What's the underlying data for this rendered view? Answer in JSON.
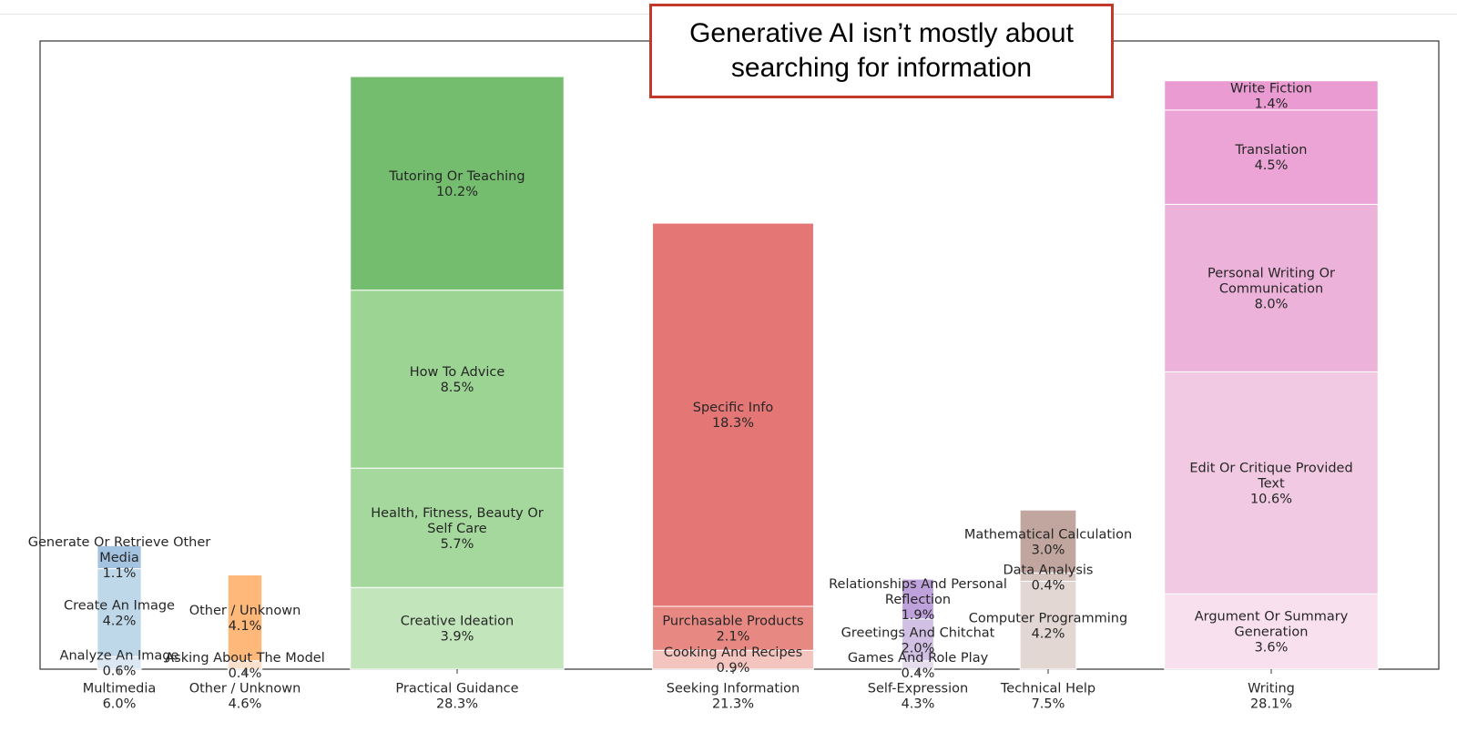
{
  "callout": {
    "text": "Generative AI isn’t mostly about searching for information"
  },
  "chart_data": {
    "type": "stacked_bar",
    "ylim": [
      0,
      30
    ],
    "grid": false,
    "legend": "none",
    "groups": [
      {
        "name": "Multimedia",
        "total_label": "6.0%",
        "total": 6.0,
        "width": 0.36,
        "segments": [
          {
            "label": "Analyze An Image",
            "pct_label": "0.6%",
            "value": 0.6,
            "color": "#dbe7f3"
          },
          {
            "label": "Create An Image",
            "pct_label": "4.2%",
            "value": 4.2,
            "color": "#bed8ea"
          },
          {
            "label": "Generate Or Retrieve Other Media",
            "pct_label": "1.1%",
            "value": 1.1,
            "color": "#a3c3e0"
          }
        ]
      },
      {
        "name": "Other / Unknown",
        "total_label": "4.6%",
        "total": 4.6,
        "width": 0.28,
        "segments": [
          {
            "label": "Asking About The Model",
            "pct_label": "0.4%",
            "value": 0.4,
            "color": "#fce0cc"
          },
          {
            "label": "Other / Unknown",
            "pct_label": "4.1%",
            "value": 4.1,
            "color": "#fdb87a"
          }
        ]
      },
      {
        "name": "Practical Guidance",
        "total_label": "28.3%",
        "total": 28.3,
        "width": 1.75,
        "segments": [
          {
            "label": "Creative Ideation",
            "pct_label": "3.9%",
            "value": 3.9,
            "color": "#c3e5bc"
          },
          {
            "label": "Health, Fitness, Beauty Or Self Care",
            "pct_label": "5.7%",
            "value": 5.7,
            "color": "#a4d89c"
          },
          {
            "label": "How To Advice",
            "pct_label": "8.5%",
            "value": 8.5,
            "color": "#9bd493"
          },
          {
            "label": "Tutoring Or Teaching",
            "pct_label": "10.2%",
            "value": 10.2,
            "color": "#74bd6f"
          }
        ]
      },
      {
        "name": "Seeking Information",
        "total_label": "21.3%",
        "total": 21.3,
        "width": 1.32,
        "segments": [
          {
            "label": "Cooking And Recipes",
            "pct_label": "0.9%",
            "value": 0.9,
            "color": "#f4c4bf"
          },
          {
            "label": "Purchasable Products",
            "pct_label": "2.1%",
            "value": 2.1,
            "color": "#e78882"
          },
          {
            "label": "Specific Info",
            "pct_label": "18.3%",
            "value": 18.3,
            "color": "#e47675"
          }
        ]
      },
      {
        "name": "Self-Expression",
        "total_label": "4.3%",
        "total": 4.3,
        "width": 0.26,
        "segments": [
          {
            "label": "Games And Role Play",
            "pct_label": "0.4%",
            "value": 0.4,
            "color": "#e5dcee"
          },
          {
            "label": "Greetings And Chitchat",
            "pct_label": "2.0%",
            "value": 2.0,
            "color": "#d1c0e3"
          },
          {
            "label": "Relationships And Personal Reflection",
            "pct_label": "1.9%",
            "value": 1.9,
            "color": "#bfa2dc"
          }
        ]
      },
      {
        "name": "Technical Help",
        "total_label": "7.5%",
        "total": 7.5,
        "width": 0.46,
        "segments": [
          {
            "label": "Computer Programming",
            "pct_label": "4.2%",
            "value": 4.2,
            "color": "#e2d7d3"
          },
          {
            "label": "Data Analysis",
            "pct_label": "0.4%",
            "value": 0.4,
            "color": "#d6c5bf"
          },
          {
            "label": "Mathematical Calculation",
            "pct_label": "3.0%",
            "value": 3.0,
            "color": "#c0a69e"
          }
        ]
      },
      {
        "name": "Writing",
        "total_label": "28.1%",
        "total": 28.1,
        "width": 1.75,
        "segments": [
          {
            "label": "Argument Or Summary Generation",
            "pct_label": "3.6%",
            "value": 3.6,
            "color": "#f9e0ee"
          },
          {
            "label": "Edit Or Critique Provided Text",
            "pct_label": "10.6%",
            "value": 10.6,
            "color": "#f1c9e2"
          },
          {
            "label": "Personal Writing Or Communication",
            "pct_label": "8.0%",
            "value": 8.0,
            "color": "#ecb2d9"
          },
          {
            "label": "Translation",
            "pct_label": "4.5%",
            "value": 4.5,
            "color": "#eba4d5"
          },
          {
            "label": "Write Fiction",
            "pct_label": "1.4%",
            "value": 1.4,
            "color": "#e99bd2"
          }
        ]
      }
    ]
  }
}
